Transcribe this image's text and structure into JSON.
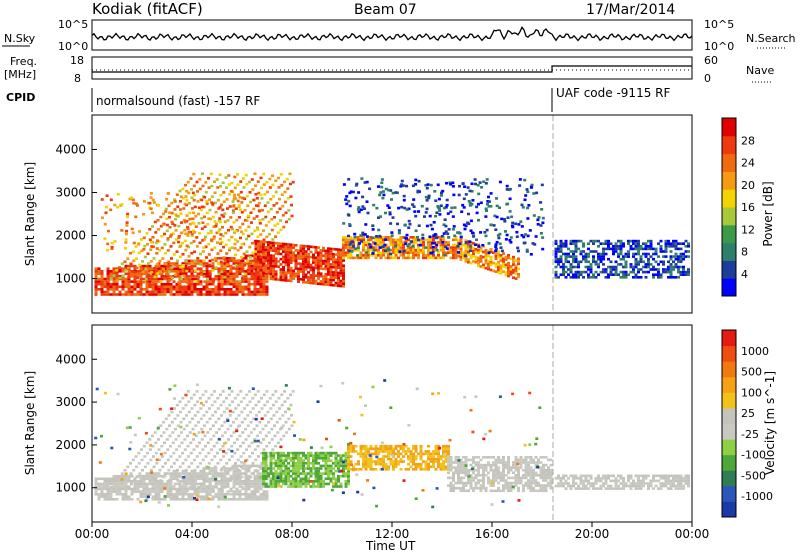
{
  "header": {
    "station": "Kodiak (fitACF)",
    "beam": "Beam 07",
    "date": "17/Mar/2014"
  },
  "top_panels": {
    "nsky_label": "N.Sky",
    "nsky_ticks": [
      "10^5",
      "10^0"
    ],
    "nsearch_label": "N.Search",
    "nsearch_ticks": [
      "10^5",
      "10^0"
    ],
    "freq_label": "Freq.",
    "freq_unit": "[MHz]",
    "freq_ticks": [
      "18",
      "8"
    ],
    "nave_label": "Nave",
    "nave_ticks": [
      "60",
      "0"
    ],
    "cpid_label": "CPID",
    "cpid_modes": [
      "normalsound (fast) -157 RF",
      "UAF code -9115 RF"
    ]
  },
  "chart_data": [
    {
      "type": "heatmap",
      "name": "power",
      "ylabel": "Slant Range [km]",
      "yticks": [
        "4000",
        "3000",
        "2000",
        "1000"
      ],
      "colorbar_label": "Power [dB]",
      "colorbar_ticks": [
        "28",
        "24",
        "20",
        "16",
        "12",
        "8",
        "4"
      ],
      "colors": [
        "#0000ff",
        "#1e3c9c",
        "#2e7f6a",
        "#3b9a47",
        "#a6c83a",
        "#f2d400",
        "#f59a12",
        "#f06a10",
        "#ee3a0e",
        "#e00000"
      ],
      "mode_change_time": "18:30"
    },
    {
      "type": "heatmap",
      "name": "velocity",
      "ylabel": "Slant Range [km]",
      "yticks": [
        "4000",
        "3000",
        "2000",
        "1000"
      ],
      "colorbar_label": "Velocity [m s^-1]",
      "colorbar_ticks": [
        "1000",
        "500",
        "100",
        "25",
        "-25",
        "-100",
        "-500",
        "-1000"
      ],
      "colors": [
        "#1a3aa8",
        "#2b55b8",
        "#2e7d55",
        "#4da838",
        "#8fcf45",
        "#c9c9c2",
        "#c4c4bc",
        "#f0c21a",
        "#f5a015",
        "#f07a10",
        "#ee4e10",
        "#e61a10"
      ]
    }
  ],
  "x_axis": {
    "ticks": [
      "00:00",
      "04:00",
      "08:00",
      "12:00",
      "16:00",
      "20:00",
      "00:00"
    ],
    "label": "Time UT"
  }
}
